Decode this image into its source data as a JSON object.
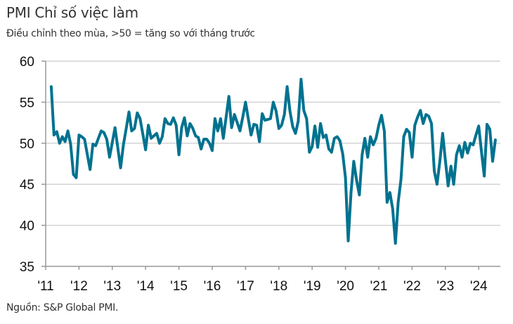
{
  "title": "PMI Chỉ số việc làm",
  "subtitle": "Điều chỉnh theo mùa, >50 = tăng so với tháng trước",
  "source": "Nguồn: S&P Global PMI.",
  "chart_data": {
    "type": "line",
    "title": "PMI Chỉ số việc làm",
    "subtitle": "Điều chỉnh theo mùa, >50 = tăng so với tháng trước",
    "xlabel": "",
    "ylabel": "",
    "ylim": [
      35,
      60
    ],
    "yticks": [
      "60",
      "55",
      "50",
      "45",
      "40",
      "35"
    ],
    "xlim": [
      2011,
      2024.75
    ],
    "xticks": [
      "'11",
      "'12",
      "'13",
      "'14",
      "'15",
      "'16",
      "'17",
      "'18",
      "'19",
      "'20",
      "'21",
      "'22",
      "'23",
      "'24"
    ],
    "grid": true,
    "legend": "none",
    "line_color": "#00728f",
    "x_start": "2011-03",
    "frequency": "monthly",
    "series": [
      {
        "values": [
          56.9,
          51.0,
          51.4,
          50.0,
          50.8,
          50.2,
          51.5,
          49.9,
          46.2,
          45.8,
          51.0,
          50.8,
          50.5,
          48.6,
          46.8,
          49.9,
          49.7,
          50.6,
          51.5,
          51.3,
          50.5,
          48.3,
          50.1,
          51.9,
          49.4,
          47.0,
          49.8,
          51.8,
          53.8,
          51.5,
          51.8,
          53.7,
          53.0,
          51.1,
          49.2,
          52.2,
          50.6,
          50.9,
          51.2,
          50.0,
          50.8,
          53.0,
          52.4,
          52.3,
          53.1,
          52.2,
          48.6,
          51.9,
          53.1,
          50.9,
          52.4,
          51.8,
          50.9,
          50.7,
          49.3,
          50.5,
          50.5,
          50.0,
          49.1,
          53.0,
          51.5,
          53.0,
          50.6,
          53.2,
          55.7,
          51.9,
          53.5,
          52.5,
          51.5,
          53.2,
          55.0,
          53.0,
          51.0,
          52.3,
          52.2,
          50.2,
          53.6,
          52.8,
          52.9,
          53.0,
          55.0,
          53.9,
          51.8,
          52.2,
          53.5,
          56.9,
          53.9,
          52.0,
          51.2,
          52.7,
          57.8,
          54.0,
          53.0,
          48.9,
          49.6,
          52.1,
          49.5,
          52.4,
          50.7,
          51.0,
          49.3,
          48.9,
          50.6,
          50.8,
          50.3,
          48.7,
          45.8,
          38.1,
          44.0,
          47.8,
          45.5,
          43.7,
          48.6,
          50.6,
          48.3,
          50.8,
          49.8,
          50.6,
          52.2,
          53.4,
          51.5,
          42.8,
          44.0,
          42.0,
          37.8,
          42.8,
          45.6,
          50.8,
          51.7,
          51.3,
          48.3,
          52.2,
          53.2,
          54.0,
          52.4,
          53.5,
          53.3,
          52.4,
          46.6,
          45.0,
          47.8,
          51.2,
          47.9,
          44.8,
          47.2,
          45.0,
          48.6,
          49.7,
          48.3,
          50.1,
          48.8,
          50.0,
          49.8,
          51.0,
          52.1,
          49.0,
          46.0,
          52.3,
          51.7,
          47.8,
          50.4
        ]
      }
    ]
  }
}
